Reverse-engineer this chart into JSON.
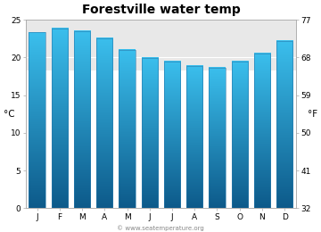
{
  "title": "Forestville water temp",
  "months": [
    "J",
    "F",
    "M",
    "A",
    "M",
    "J",
    "J",
    "A",
    "S",
    "O",
    "N",
    "D"
  ],
  "values_c": [
    23.3,
    23.8,
    23.5,
    22.5,
    21.0,
    19.9,
    19.4,
    18.9,
    18.6,
    19.5,
    20.5,
    22.2
  ],
  "ylim_c": [
    0,
    25
  ],
  "yticks_c": [
    0,
    5,
    10,
    15,
    20,
    25
  ],
  "yticks_f": [
    32,
    41,
    50,
    59,
    68,
    77
  ],
  "ylabel_left": "°C",
  "ylabel_right": "°F",
  "bar_color_top": "#3bbfed",
  "bar_color_bottom": "#0d5a8a",
  "bar_edge_color": "#2a7aad",
  "background_color": "#ffffff",
  "plot_bg_light": "#e8e8e8",
  "grid_color": "#ffffff",
  "title_fontsize": 10,
  "tick_fontsize": 6.5,
  "label_fontsize": 7.5,
  "watermark": "© www.seatemperature.org",
  "watermark_fontsize": 5
}
